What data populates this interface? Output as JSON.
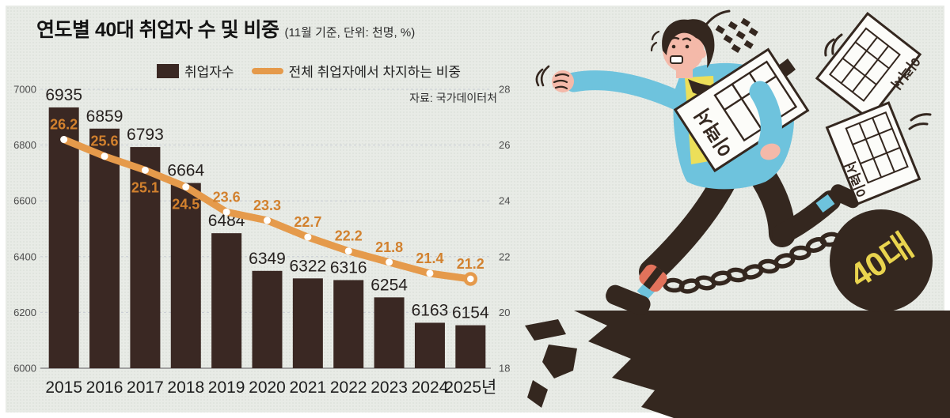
{
  "header": {
    "title": "연도별 40대 취업자 수 및 비중",
    "subtitle": "(11월 기준, 단위: 천명, %)",
    "source": "자료: 국가데이터처"
  },
  "legend": {
    "bar_label": "취업자수",
    "line_label": "전체 취업자에서 차지하는 비중"
  },
  "colors": {
    "bar": "#3a2823",
    "line": "#e59a4b",
    "line_value_label": "#d2812e",
    "bar_value_label": "#26211f",
    "axis_tick": "#4d4d4d",
    "x_label": "#1e1e1e",
    "grid": "#c7ccd4",
    "baseline": "#8a8a8a",
    "background": "#e8ebe6",
    "illustration": {
      "dark": "#34271f",
      "jacket_blue": "#6ec3dd",
      "shirt_yellow": "#ecdf59",
      "skin": "#f4b9a9",
      "shackle_red": "#e2725b",
      "paper": "#fcfcf9",
      "ball_text_yellow": "#e9d44e"
    }
  },
  "chart_data": {
    "type": "bar",
    "title": "연도별 40대 취업자 수 및 비중",
    "unit_note": "11월 기준, 단위: 천명, %",
    "categories": [
      "2015",
      "2016",
      "2017",
      "2018",
      "2019",
      "2020",
      "2021",
      "2022",
      "2023",
      "2024",
      "2025년"
    ],
    "series": [
      {
        "name": "취업자수",
        "type": "bar",
        "axis": "left",
        "values": [
          6935,
          6859,
          6793,
          6664,
          6484,
          6349,
          6322,
          6316,
          6254,
          6163,
          6154
        ]
      },
      {
        "name": "전체 취업자에서 차지하는 비중",
        "type": "line",
        "axis": "right",
        "values": [
          26.2,
          25.6,
          25.1,
          24.5,
          23.6,
          23.3,
          22.7,
          22.2,
          21.8,
          21.4,
          21.2
        ]
      }
    ],
    "left_axis": {
      "min": 6000,
      "max": 7000,
      "ticks": [
        6000,
        6200,
        6400,
        6600,
        6800,
        7000
      ]
    },
    "right_axis": {
      "min": 18,
      "max": 28,
      "ticks": [
        18,
        20,
        22,
        24,
        26,
        28
      ]
    },
    "gridlines": "dashed-horizontal",
    "legend_position": "top",
    "line_label_side": [
      "above",
      "above",
      "below",
      "below",
      "above",
      "above",
      "above",
      "above",
      "above",
      "above",
      "above"
    ]
  },
  "illustration": {
    "ball_label": "40대",
    "paper_label": "이력서",
    "held_paper_label": "이력서"
  }
}
